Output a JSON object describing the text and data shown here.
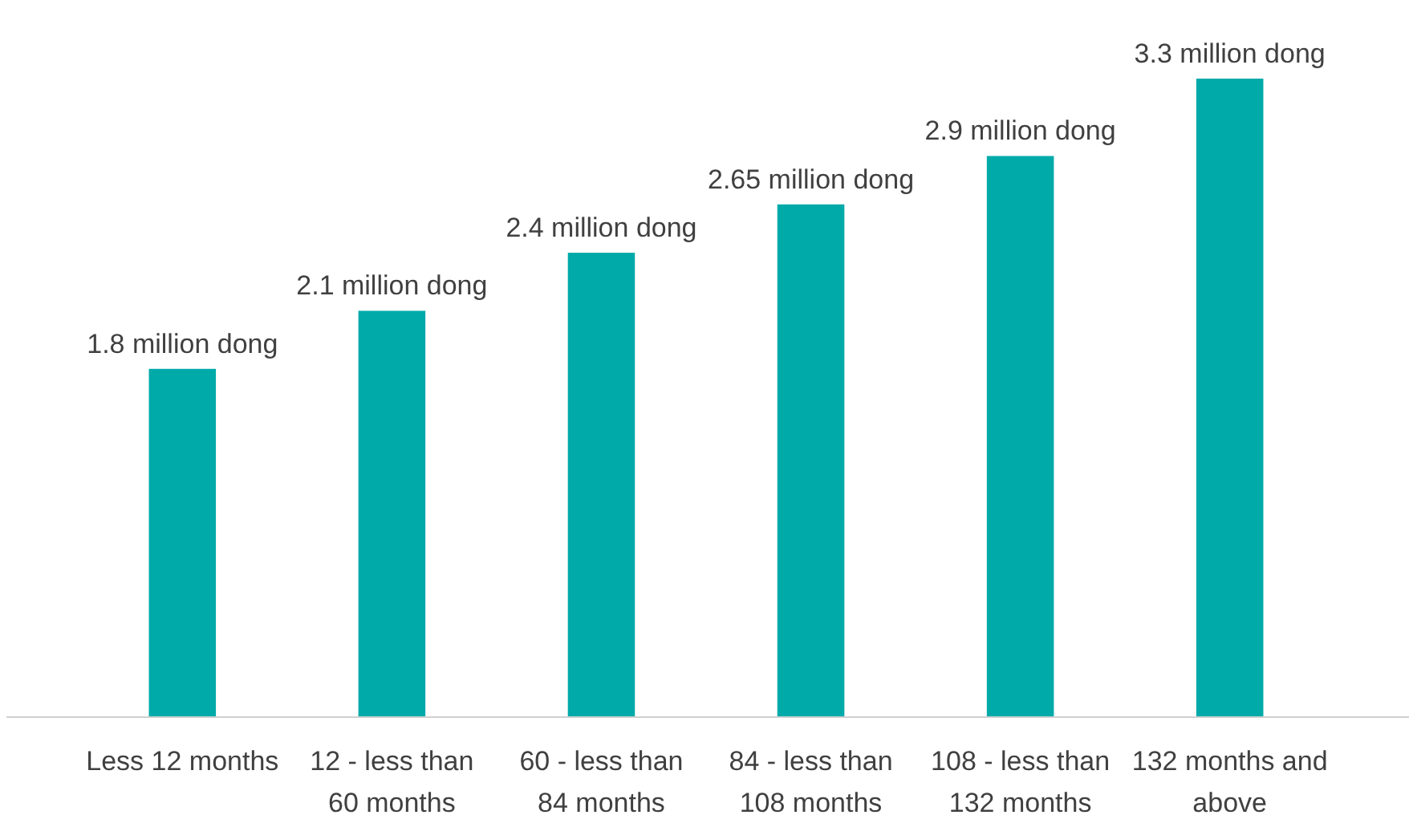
{
  "chart_data": {
    "type": "bar",
    "categories": [
      "Less 12 months",
      "12 - less than 60 months",
      "60 - less than 84 months",
      "84 - less than 108 months",
      "108 - less than 132 months",
      "132 months and above"
    ],
    "values": [
      1.8,
      2.1,
      2.4,
      2.65,
      2.9,
      3.3
    ],
    "value_labels": [
      "1.8 million dong",
      "2.1 million dong",
      "2.4 million dong",
      "2.65 million dong",
      "2.9 million dong",
      "3.3 million dong"
    ],
    "color": "#00aaa9"
  }
}
